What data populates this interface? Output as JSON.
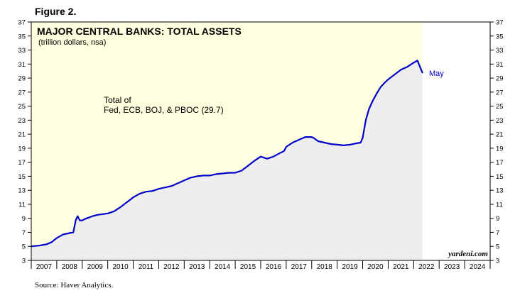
{
  "figure_label": "Figure 2.",
  "source": "Source: Haver Analytics.",
  "chart_data": {
    "type": "area",
    "title": "MAJOR CENTRAL BANKS: TOTAL ASSETS",
    "subtitle": "(trillion dollars, nsa)",
    "annotation": "Total of\nFed, ECB, BOJ, & PBOC (29.7)",
    "end_label": "May",
    "watermark": "yardeni.com",
    "ylim": [
      3,
      37
    ],
    "yticks": [
      3,
      5,
      7,
      9,
      11,
      13,
      15,
      17,
      19,
      21,
      23,
      25,
      27,
      29,
      31,
      33,
      35,
      37
    ],
    "xlim": [
      2007,
      2025
    ],
    "year_labels": [
      "2007",
      "2008",
      "2009",
      "2010",
      "2011",
      "2012",
      "2013",
      "2014",
      "2015",
      "2016",
      "2017",
      "2018",
      "2019",
      "2020",
      "2021",
      "2022",
      "2023",
      "2024"
    ],
    "shade_color": "#ffffe0",
    "fill_color": "#eeeeee",
    "line_color": "#0000cc",
    "series": [
      {
        "x": [
          2007.0,
          2007.3,
          2007.6,
          2007.8,
          2008.0,
          2008.25,
          2008.5,
          2008.65,
          2008.75,
          2008.82,
          2008.9,
          2009.0,
          2009.1,
          2009.25,
          2009.4,
          2009.6,
          2009.8,
          2010.0,
          2010.25,
          2010.5,
          2010.75,
          2011.0,
          2011.25,
          2011.5,
          2011.75,
          2012.0,
          2012.25,
          2012.5,
          2012.75,
          2013.0,
          2013.25,
          2013.5,
          2013.75,
          2014.0,
          2014.25,
          2014.5,
          2014.75,
          2015.0,
          2015.25,
          2015.5,
          2015.75,
          2016.0,
          2016.25,
          2016.5,
          2016.75,
          2016.92,
          2017.0,
          2017.25,
          2017.5,
          2017.75,
          2018.0,
          2018.1,
          2018.25,
          2018.5,
          2018.75,
          2019.0,
          2019.25,
          2019.5,
          2019.75,
          2019.92,
          2020.0,
          2020.12,
          2020.25,
          2020.4,
          2020.55,
          2020.7,
          2020.85,
          2021.0,
          2021.25,
          2021.5,
          2021.75,
          2022.0,
          2022.15,
          2022.25,
          2022.35
        ],
        "y": [
          5.0,
          5.1,
          5.3,
          5.6,
          6.2,
          6.7,
          6.9,
          7.0,
          8.8,
          9.3,
          8.7,
          8.7,
          8.9,
          9.1,
          9.3,
          9.5,
          9.6,
          9.7,
          10.0,
          10.6,
          11.3,
          12.0,
          12.5,
          12.8,
          12.9,
          13.2,
          13.4,
          13.6,
          14.0,
          14.4,
          14.8,
          15.0,
          15.1,
          15.1,
          15.3,
          15.4,
          15.5,
          15.5,
          15.8,
          16.5,
          17.2,
          17.8,
          17.5,
          17.8,
          18.3,
          18.6,
          19.2,
          19.8,
          20.2,
          20.6,
          20.6,
          20.4,
          20.0,
          19.8,
          19.6,
          19.5,
          19.4,
          19.5,
          19.7,
          19.8,
          20.5,
          23.0,
          24.6,
          25.8,
          26.8,
          27.7,
          28.3,
          28.8,
          29.5,
          30.2,
          30.6,
          31.2,
          31.5,
          30.6,
          29.7
        ]
      }
    ]
  }
}
